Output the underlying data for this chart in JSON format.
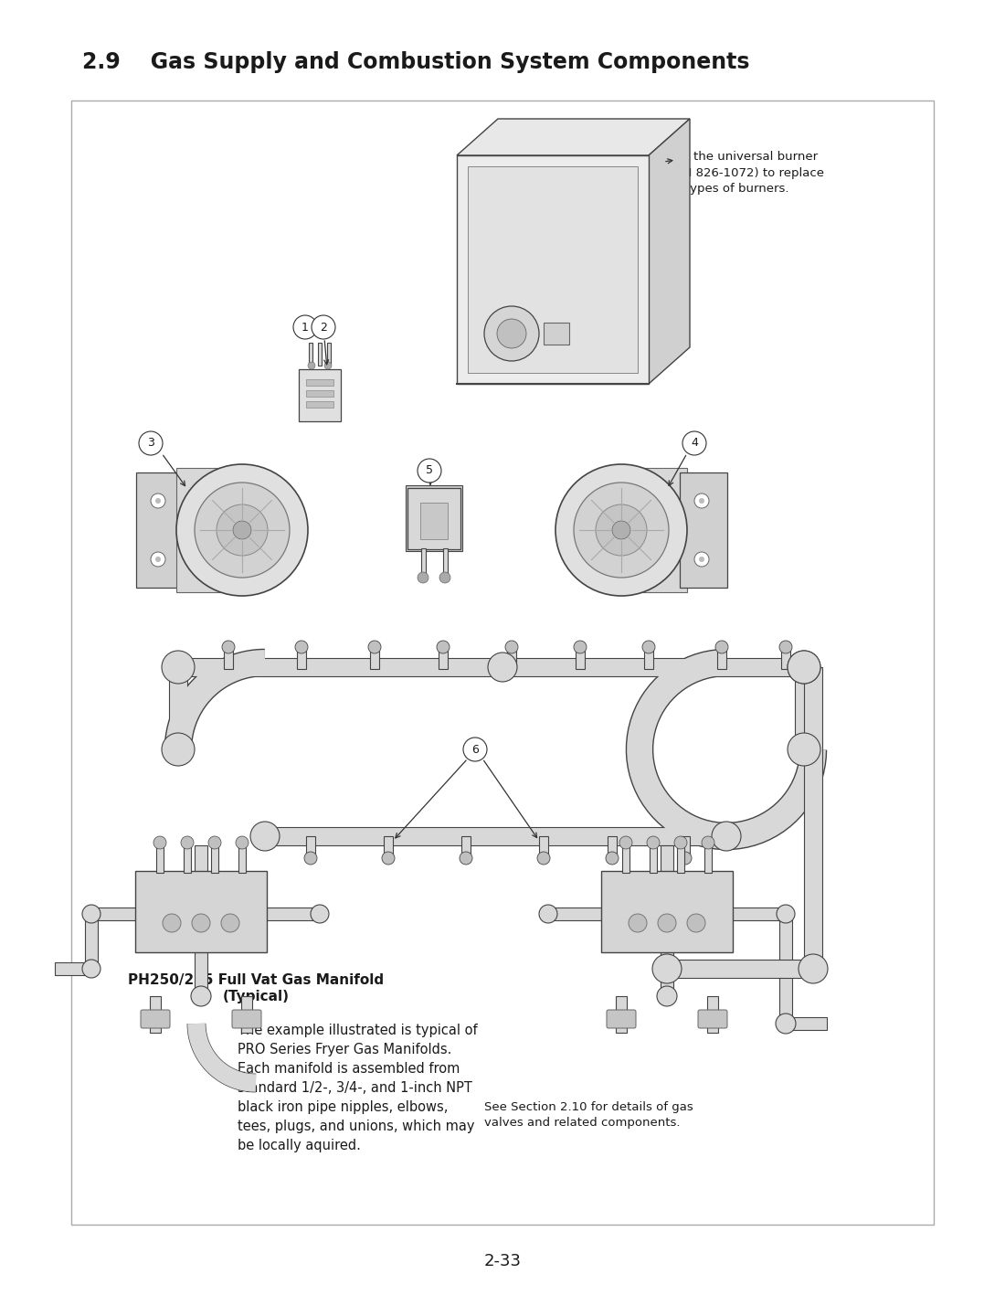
{
  "page_title": "2.9    Gas Supply and Combustion System Components",
  "page_number": "2-33",
  "bg": "#ffffff",
  "fg": "#1a1a1a",
  "pipe_fill": "#d8d8d8",
  "pipe_edge": "#444444",
  "comp_fill": "#e0e0e0",
  "comp_edge": "#444444",
  "dark_fill": "#c0c0c0",
  "annotation_burner": "Use the universal burner\n(P/N 826-1072) to replace\nall types of burners.",
  "annotation_manifold_title_1": "PH250/255 Full Vat Gas Manifold",
  "annotation_manifold_title_2": "(Typical)",
  "annotation_body": "The example illustrated is typical of\nPRO Series Fryer Gas Manifolds.\nEach manifold is assembled from\nstandard 1/2-, 3/4-, and 1-inch NPT\nblack iron pipe nipples, elbows,\ntees, plugs, and unions, which may\nbe locally aquired.",
  "annotation_section": "See Section 2.10 for details of gas\nvalves and related components.",
  "title_fs": 17,
  "body_fs": 11,
  "small_fs": 10,
  "label_fs": 9,
  "pgnum_fs": 13
}
